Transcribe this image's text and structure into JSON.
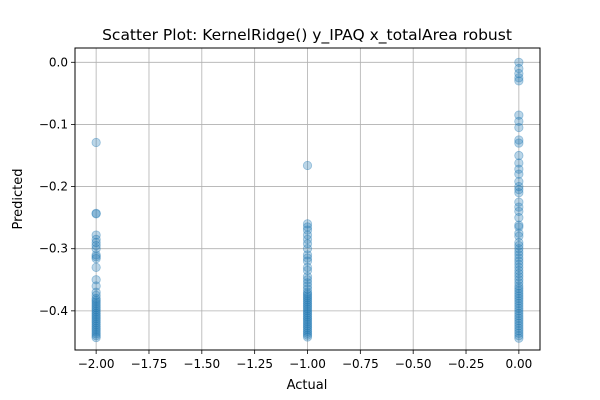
{
  "chart_data": {
    "type": "scatter",
    "title": "Scatter Plot: KernelRidge() y_IPAQ x_totalArea robust",
    "xlabel": "Actual",
    "ylabel": "Predicted",
    "xlim": [
      -2.1,
      0.1
    ],
    "ylim": [
      -0.463,
      0.023
    ],
    "x_ticks": [
      -2.0,
      -1.75,
      -1.5,
      -1.25,
      -1.0,
      -0.75,
      -0.5,
      -0.25,
      0.0
    ],
    "x_tick_labels": [
      "−2.00",
      "−1.75",
      "−1.50",
      "−1.25",
      "−1.00",
      "−0.75",
      "−0.50",
      "−0.25",
      "0.00"
    ],
    "y_ticks": [
      0.0,
      -0.1,
      -0.2,
      -0.3,
      -0.4
    ],
    "y_tick_labels": [
      "0.0",
      "−0.1",
      "−0.2",
      "−0.3",
      "−0.4"
    ],
    "grid": true,
    "marker_color": "#1f77b4",
    "marker_alpha": 0.3,
    "series": [
      {
        "x_values": [
          -2.0,
          -1.0,
          0.0
        ],
        "predicted_groups": [
          [
            -0.129,
            -0.243,
            -0.244,
            -0.278,
            -0.285,
            -0.29,
            -0.295,
            -0.3,
            -0.31,
            -0.313,
            -0.316,
            -0.33,
            -0.35,
            -0.36,
            -0.37,
            -0.375,
            -0.38,
            -0.383,
            -0.386,
            -0.389,
            -0.392,
            -0.395,
            -0.398,
            -0.401,
            -0.404,
            -0.407,
            -0.41,
            -0.413,
            -0.416,
            -0.419,
            -0.422,
            -0.425,
            -0.428,
            -0.431,
            -0.434,
            -0.437,
            -0.44,
            -0.443
          ],
          [
            -0.166,
            -0.26,
            -0.265,
            -0.27,
            -0.278,
            -0.285,
            -0.292,
            -0.3,
            -0.31,
            -0.315,
            -0.32,
            -0.33,
            -0.335,
            -0.345,
            -0.35,
            -0.355,
            -0.36,
            -0.365,
            -0.37,
            -0.373,
            -0.376,
            -0.379,
            -0.382,
            -0.385,
            -0.388,
            -0.391,
            -0.394,
            -0.397,
            -0.4,
            -0.403,
            -0.406,
            -0.409,
            -0.412,
            -0.415,
            -0.418,
            -0.421,
            -0.424,
            -0.427,
            -0.43,
            -0.433,
            -0.436,
            -0.439,
            -0.442
          ],
          [
            0.0,
            -0.01,
            -0.018,
            -0.025,
            -0.03,
            -0.085,
            -0.095,
            -0.105,
            -0.125,
            -0.13,
            -0.15,
            -0.162,
            -0.172,
            -0.18,
            -0.192,
            -0.2,
            -0.205,
            -0.21,
            -0.225,
            -0.233,
            -0.24,
            -0.25,
            -0.262,
            -0.265,
            -0.275,
            -0.28,
            -0.29,
            -0.295,
            -0.3,
            -0.305,
            -0.31,
            -0.315,
            -0.32,
            -0.325,
            -0.33,
            -0.335,
            -0.34,
            -0.345,
            -0.35,
            -0.355,
            -0.36,
            -0.364,
            -0.368,
            -0.372,
            -0.376,
            -0.38,
            -0.384,
            -0.388,
            -0.392,
            -0.396,
            -0.4,
            -0.404,
            -0.408,
            -0.412,
            -0.416,
            -0.42,
            -0.424,
            -0.428,
            -0.432,
            -0.436,
            -0.44,
            -0.444
          ]
        ]
      }
    ]
  }
}
